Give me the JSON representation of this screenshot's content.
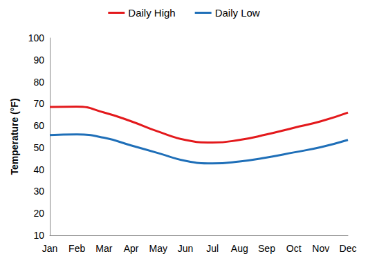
{
  "chart_data": {
    "type": "line",
    "y_label": "Temperature (°F)",
    "categories": [
      "Jan",
      "Feb",
      "Mar",
      "Apr",
      "May",
      "Jun",
      "Jul",
      "Aug",
      "Sep",
      "Oct",
      "Nov",
      "Dec"
    ],
    "series": [
      {
        "name": "Daily High",
        "color": "#e3191c",
        "values": [
          68.5,
          68.7,
          66,
          62,
          57.3,
          53.5,
          52.3,
          53.5,
          56,
          59,
          62,
          66
        ]
      },
      {
        "name": "Daily Low",
        "color": "#1f6fb8",
        "values": [
          55.7,
          56,
          54.5,
          51,
          47.5,
          44,
          42.8,
          43.7,
          45.5,
          47.8,
          50.2,
          53.5
        ]
      }
    ],
    "ylim": [
      10,
      100
    ],
    "yticks": [
      10,
      20,
      30,
      40,
      50,
      60,
      70,
      80,
      90,
      100
    ],
    "grid": false,
    "legend": "top",
    "marker": "none",
    "line_style": "solid"
  }
}
